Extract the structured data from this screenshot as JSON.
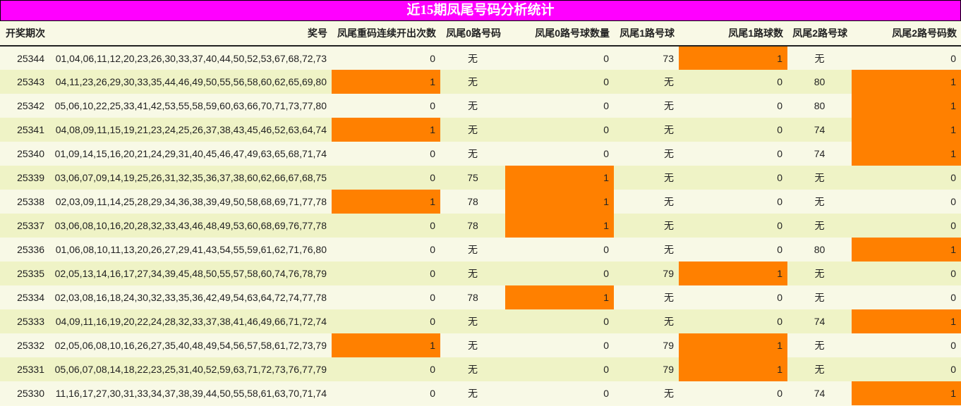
{
  "title": "近15期凤尾号码分析统计",
  "colors": {
    "title_bg": "#ff00ff",
    "highlight": "#ff8000",
    "row_odd": "#f8f9e6",
    "row_even": "#eff3c6"
  },
  "headers": [
    "开奖期次",
    "奖号",
    "凤尾重码连续开出次数",
    "凤尾0路号码",
    "凤尾0路号球数量",
    "凤尾1路号球",
    "凤尾1路球数",
    "凤尾2路号球",
    "凤尾2路号码数"
  ],
  "rows": [
    {
      "period": "25344",
      "numbers": "01,04,06,11,12,20,23,26,30,33,37,40,44,50,52,53,67,68,72,73",
      "repeat": "0",
      "r0": "无",
      "r0n": "0",
      "r1": "73",
      "r1n": "1",
      "r2": "无",
      "r2n": "0"
    },
    {
      "period": "25343",
      "numbers": "04,11,23,26,29,30,33,35,44,46,49,50,55,56,58,60,62,65,69,80",
      "repeat": "1",
      "r0": "无",
      "r0n": "0",
      "r1": "无",
      "r1n": "0",
      "r2": "80",
      "r2n": "1"
    },
    {
      "period": "25342",
      "numbers": "05,06,10,22,25,33,41,42,53,55,58,59,60,63,66,70,71,73,77,80",
      "repeat": "0",
      "r0": "无",
      "r0n": "0",
      "r1": "无",
      "r1n": "0",
      "r2": "80",
      "r2n": "1"
    },
    {
      "period": "25341",
      "numbers": "04,08,09,11,15,19,21,23,24,25,26,37,38,43,45,46,52,63,64,74",
      "repeat": "1",
      "r0": "无",
      "r0n": "0",
      "r1": "无",
      "r1n": "0",
      "r2": "74",
      "r2n": "1"
    },
    {
      "period": "25340",
      "numbers": "01,09,14,15,16,20,21,24,29,31,40,45,46,47,49,63,65,68,71,74",
      "repeat": "0",
      "r0": "无",
      "r0n": "0",
      "r1": "无",
      "r1n": "0",
      "r2": "74",
      "r2n": "1"
    },
    {
      "period": "25339",
      "numbers": "03,06,07,09,14,19,25,26,31,32,35,36,37,38,60,62,66,67,68,75",
      "repeat": "0",
      "r0": "75",
      "r0n": "1",
      "r1": "无",
      "r1n": "0",
      "r2": "无",
      "r2n": "0"
    },
    {
      "period": "25338",
      "numbers": "02,03,09,11,14,25,28,29,34,36,38,39,49,50,58,68,69,71,77,78",
      "repeat": "1",
      "r0": "78",
      "r0n": "1",
      "r1": "无",
      "r1n": "0",
      "r2": "无",
      "r2n": "0"
    },
    {
      "period": "25337",
      "numbers": "03,06,08,10,16,20,28,32,33,43,46,48,49,53,60,68,69,76,77,78",
      "repeat": "0",
      "r0": "78",
      "r0n": "1",
      "r1": "无",
      "r1n": "0",
      "r2": "无",
      "r2n": "0"
    },
    {
      "period": "25336",
      "numbers": "01,06,08,10,11,13,20,26,27,29,41,43,54,55,59,61,62,71,76,80",
      "repeat": "0",
      "r0": "无",
      "r0n": "0",
      "r1": "无",
      "r1n": "0",
      "r2": "80",
      "r2n": "1"
    },
    {
      "period": "25335",
      "numbers": "02,05,13,14,16,17,27,34,39,45,48,50,55,57,58,60,74,76,78,79",
      "repeat": "0",
      "r0": "无",
      "r0n": "0",
      "r1": "79",
      "r1n": "1",
      "r2": "无",
      "r2n": "0"
    },
    {
      "period": "25334",
      "numbers": "02,03,08,16,18,24,30,32,33,35,36,42,49,54,63,64,72,74,77,78",
      "repeat": "0",
      "r0": "78",
      "r0n": "1",
      "r1": "无",
      "r1n": "0",
      "r2": "无",
      "r2n": "0"
    },
    {
      "period": "25333",
      "numbers": "04,09,11,16,19,20,22,24,28,32,33,37,38,41,46,49,66,71,72,74",
      "repeat": "0",
      "r0": "无",
      "r0n": "0",
      "r1": "无",
      "r1n": "0",
      "r2": "74",
      "r2n": "1"
    },
    {
      "period": "25332",
      "numbers": "02,05,06,08,10,16,26,27,35,40,48,49,54,56,57,58,61,72,73,79",
      "repeat": "1",
      "r0": "无",
      "r0n": "0",
      "r1": "79",
      "r1n": "1",
      "r2": "无",
      "r2n": "0"
    },
    {
      "period": "25331",
      "numbers": "05,06,07,08,14,18,22,23,25,31,40,52,59,63,71,72,73,76,77,79",
      "repeat": "0",
      "r0": "无",
      "r0n": "0",
      "r1": "79",
      "r1n": "1",
      "r2": "无",
      "r2n": "0"
    },
    {
      "period": "25330",
      "numbers": "11,16,17,27,30,31,33,34,37,38,39,44,50,55,58,61,63,70,71,74",
      "repeat": "0",
      "r0": "无",
      "r0n": "0",
      "r1": "无",
      "r1n": "0",
      "r2": "74",
      "r2n": "1"
    }
  ]
}
